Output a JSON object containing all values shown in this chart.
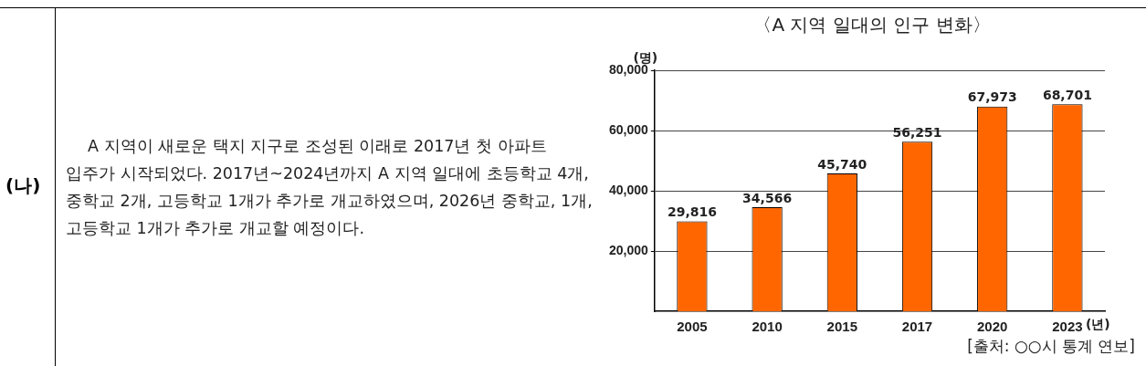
{
  "chart_data": {
    "type": "bar",
    "title": "〈A 지역 일대의 인구 변화〉",
    "ylabel": "(명)",
    "xlabel": "(년)",
    "categories": [
      "2005",
      "2010",
      "2015",
      "2017",
      "2020",
      "2023"
    ],
    "values": [
      29816,
      34566,
      45740,
      56251,
      67973,
      68701
    ],
    "value_labels": [
      "29,816",
      "34,566",
      "45,740",
      "56,251",
      "67,973",
      "68,701"
    ],
    "color": "#ff6600",
    "ylim": [
      0,
      80000
    ],
    "yticks": [
      {
        "value": 20000,
        "label": "20,000"
      },
      {
        "value": 40000,
        "label": "40,000"
      },
      {
        "value": 60000,
        "label": "60,000"
      },
      {
        "value": 80000,
        "label": "80,000"
      }
    ],
    "grid": "y",
    "annotations": [
      "(나)",
      "A 지역이 새로운 택지 지구로 조성된 이래로 2017년 첫 아파트 입주가 시작되었다. 2017년~2024년까지 A 지역 일대에 초등학교 4개, 중학교 2개, 고등학교 1개가 추가로 개교하였으며, 2026년 중학교, 1개, 고등학교 1개가 추가로 개교할 예정이다.",
      "[출처: ○○시 통계 연보]"
    ]
  }
}
